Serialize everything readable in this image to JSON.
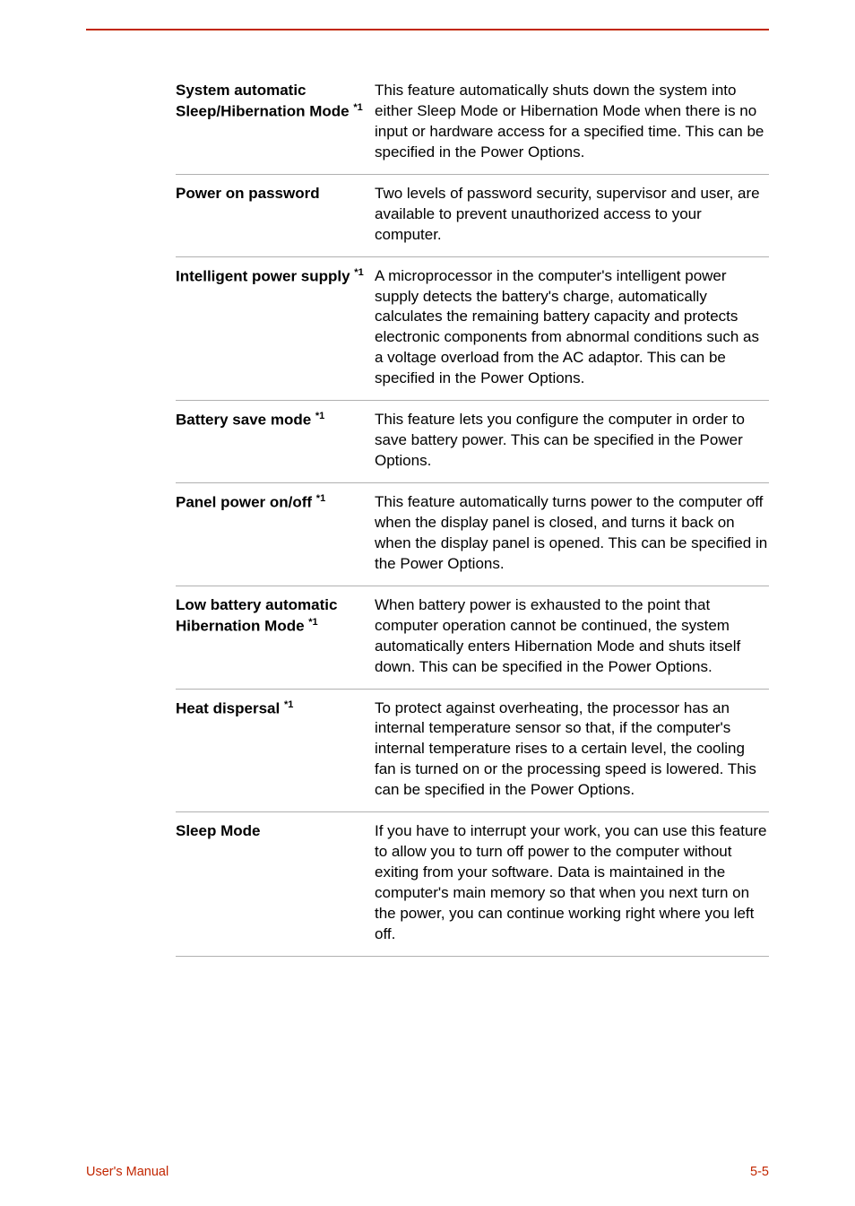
{
  "rows": [
    {
      "label_html": "System automatic Sleep/Hibernation Mode <sup>*1</sup>",
      "desc": "This feature automatically shuts down the system into either Sleep Mode or Hibernation Mode when there is no input or hardware access for a specified time. This can be specified in the Power Options."
    },
    {
      "label_html": "Power on password",
      "desc": "Two levels of password security, supervisor and user, are available to prevent unauthorized access to your computer."
    },
    {
      "label_html": "Intelligent power supply <sup>*1</sup>",
      "desc": "A microprocessor in the computer's intelligent power supply detects the battery's charge, automatically calculates the remaining battery capacity and protects electronic components from abnormal conditions such as a voltage overload from the AC adaptor. This can be specified in the Power Options."
    },
    {
      "label_html": "Battery save mode <sup>*1</sup>",
      "desc": "This feature lets you configure the computer in order to save battery power. This can be specified in the Power Options."
    },
    {
      "label_html": "Panel power on/off <sup>*1</sup>",
      "desc": "This feature automatically turns power to the computer off when the display panel is closed, and turns it back on when the display panel is opened. This can be specified in the Power Options."
    },
    {
      "label_html": "Low battery automatic Hibernation Mode <sup>*1</sup>",
      "desc": "When battery power is exhausted to the point that computer operation cannot be continued, the system automatically enters Hibernation Mode and shuts itself down. This can be specified in the Power Options."
    },
    {
      "label_html": "Heat dispersal <sup>*1</sup>",
      "desc": "To protect against overheating, the processor has an internal temperature sensor so that, if the computer's internal temperature rises to a certain level, the cooling fan is turned on or the processing speed is lowered. This can be specified in the Power Options."
    },
    {
      "label_html": "Sleep Mode",
      "desc": "If you have to interrupt your work, you can use this feature to allow you to turn off power to the computer without exiting from your software. Data is maintained in the computer's main memory so that when you next turn on the power, you can continue working right where you left off."
    }
  ],
  "footer": {
    "left": "User's Manual",
    "right": "5-5"
  },
  "colors": {
    "accent": "#c22600",
    "rule": "#b0b0b0",
    "text": "#000000",
    "background": "#ffffff"
  }
}
